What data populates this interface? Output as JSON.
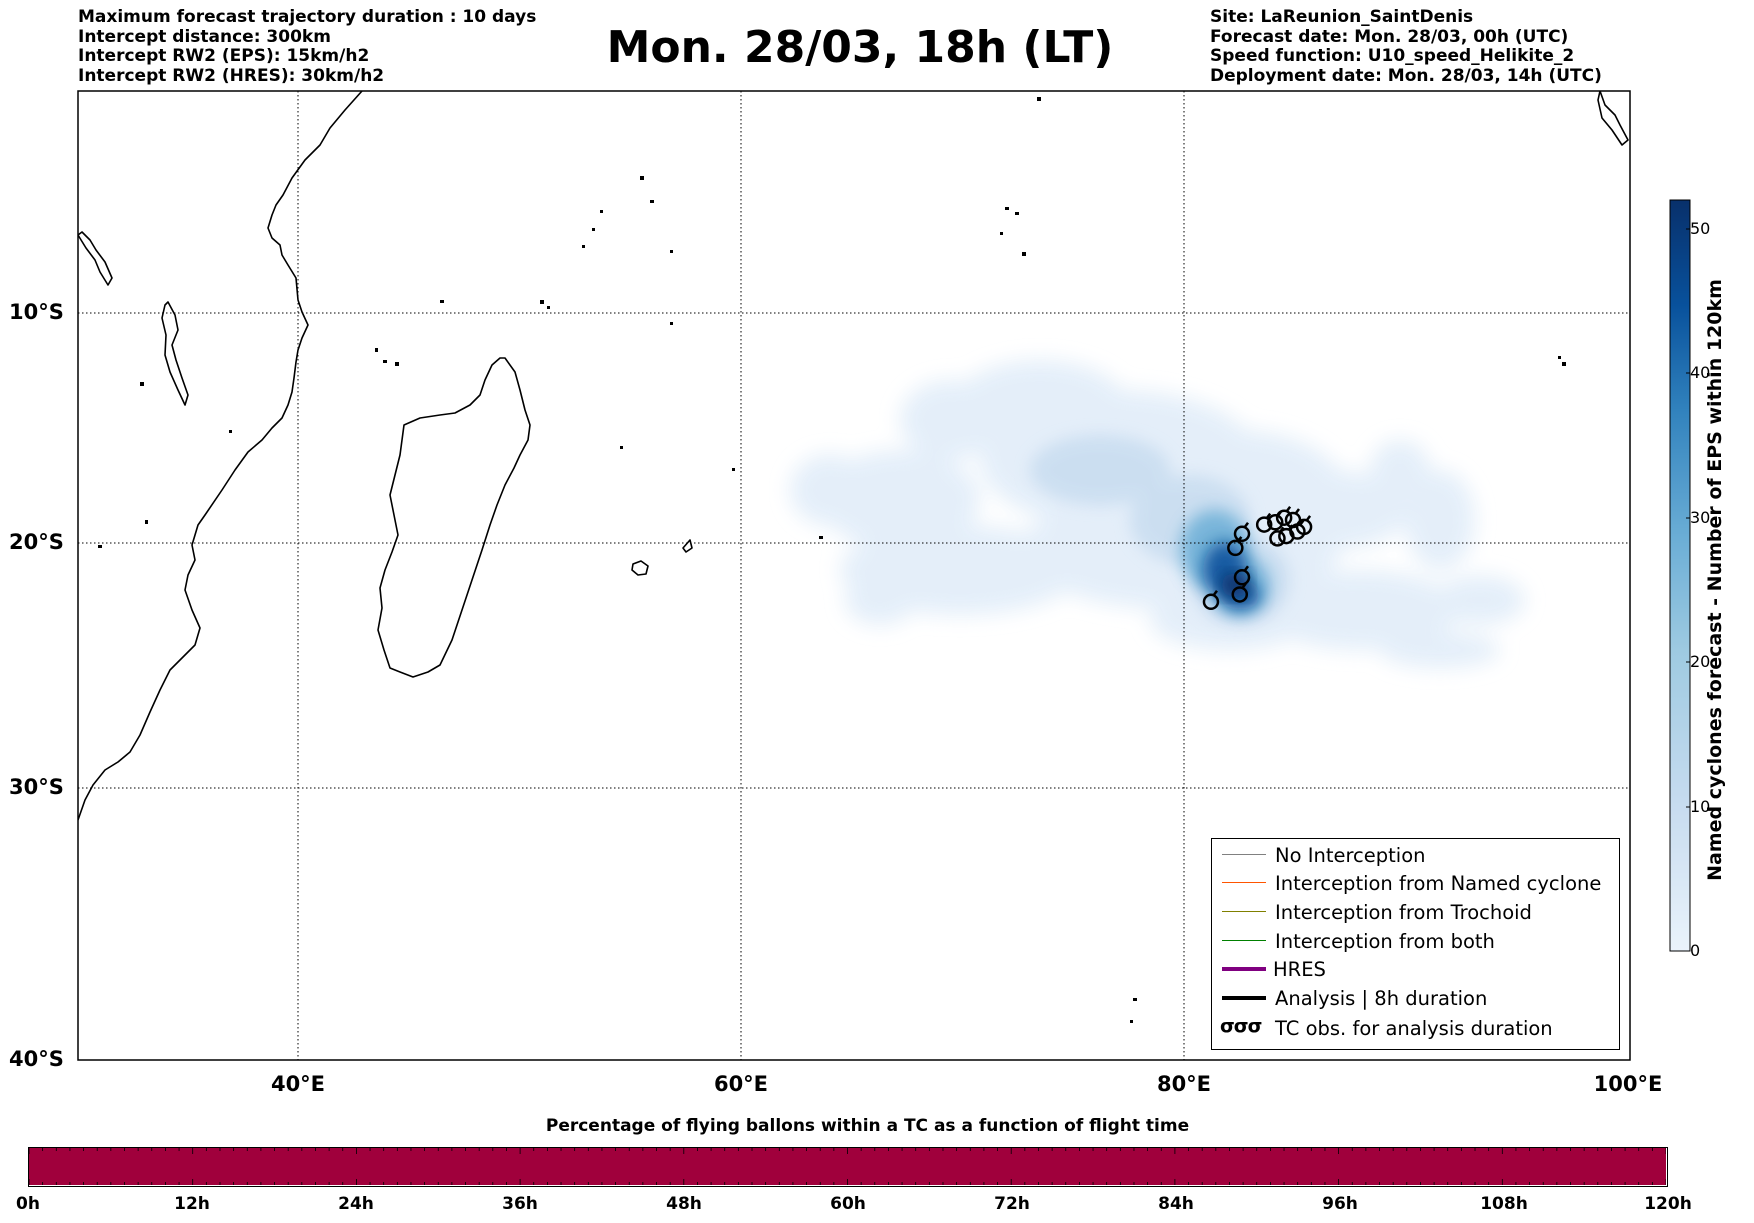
{
  "header": {
    "left_lines": [
      "Maximum forecast trajectory duration : 10 days",
      "Intercept distance: 300km",
      "Intercept RW2 (EPS):  15km/h2",
      "Intercept RW2 (HRES): 30km/h2"
    ],
    "title": "Mon. 28/03, 18h (LT)",
    "right_lines": [
      "Site: LaReunion_SaintDenis",
      "Forecast date: Mon. 28/03, 00h (UTC)",
      "Speed function: U10_speed_Helikite_2",
      "Deployment date: Mon. 28/03, 14h (UTC)"
    ]
  },
  "map": {
    "extent": {
      "lon": [
        30,
        100
      ],
      "lat": [
        -40,
        1
      ]
    },
    "lat_labels": [
      "10°S",
      "20°S",
      "30°S",
      "40°S"
    ],
    "lon_labels": [
      "40°E",
      "60°E",
      "80°E",
      "100°E"
    ],
    "grid": "dotted",
    "tc_observations": [
      {
        "lon": 81.1,
        "lat": -22.4
      },
      {
        "lon": 82.4,
        "lat": -22.1
      },
      {
        "lon": 82.5,
        "lat": -21.4
      },
      {
        "lon": 82.2,
        "lat": -20.2
      },
      {
        "lon": 82.5,
        "lat": -19.6
      },
      {
        "lon": 83.5,
        "lat": -19.2
      },
      {
        "lon": 84.0,
        "lat": -19.1
      },
      {
        "lon": 84.4,
        "lat": -18.9
      },
      {
        "lon": 84.8,
        "lat": -19.0
      },
      {
        "lon": 84.1,
        "lat": -19.8
      },
      {
        "lon": 84.5,
        "lat": -19.7
      },
      {
        "lon": 85.0,
        "lat": -19.5
      },
      {
        "lon": 85.3,
        "lat": -19.3
      }
    ]
  },
  "legend": {
    "items": [
      {
        "label": "No Interception",
        "color": "#808080",
        "width": 1.2
      },
      {
        "label": "Interception from Named cyclone",
        "color": "#ff5500",
        "width": 1.2
      },
      {
        "label": "Interception from Trochoid",
        "color": "#808000",
        "width": 1.2
      },
      {
        "label": "Interception from both",
        "color": "#008000",
        "width": 1.2
      },
      {
        "label": "HRES",
        "color": "#800080",
        "width": 4
      },
      {
        "label": "Analysis | 8h duration",
        "color": "#000000",
        "width": 4
      }
    ],
    "tc_symbol": "σσσ",
    "tc_label": "TC obs. for analysis duration"
  },
  "colorbar": {
    "title": "Named cyclones forecast - Number of EPS within 120km",
    "ticks": [
      "0",
      "10",
      "20",
      "30",
      "40",
      "50"
    ],
    "max": 52,
    "colors": [
      "#eaf3fb",
      "#c6dbef",
      "#9ecae1",
      "#6baed6",
      "#3182bd",
      "#08519c",
      "#08306b"
    ]
  },
  "flight_bar": {
    "title": "Percentage of flying ballons within a TC as a function of flight time",
    "labels": [
      "0h",
      "12h",
      "24h",
      "36h",
      "48h",
      "60h",
      "72h",
      "84h",
      "96h",
      "108h",
      "120h"
    ],
    "color": "#a0003c"
  }
}
